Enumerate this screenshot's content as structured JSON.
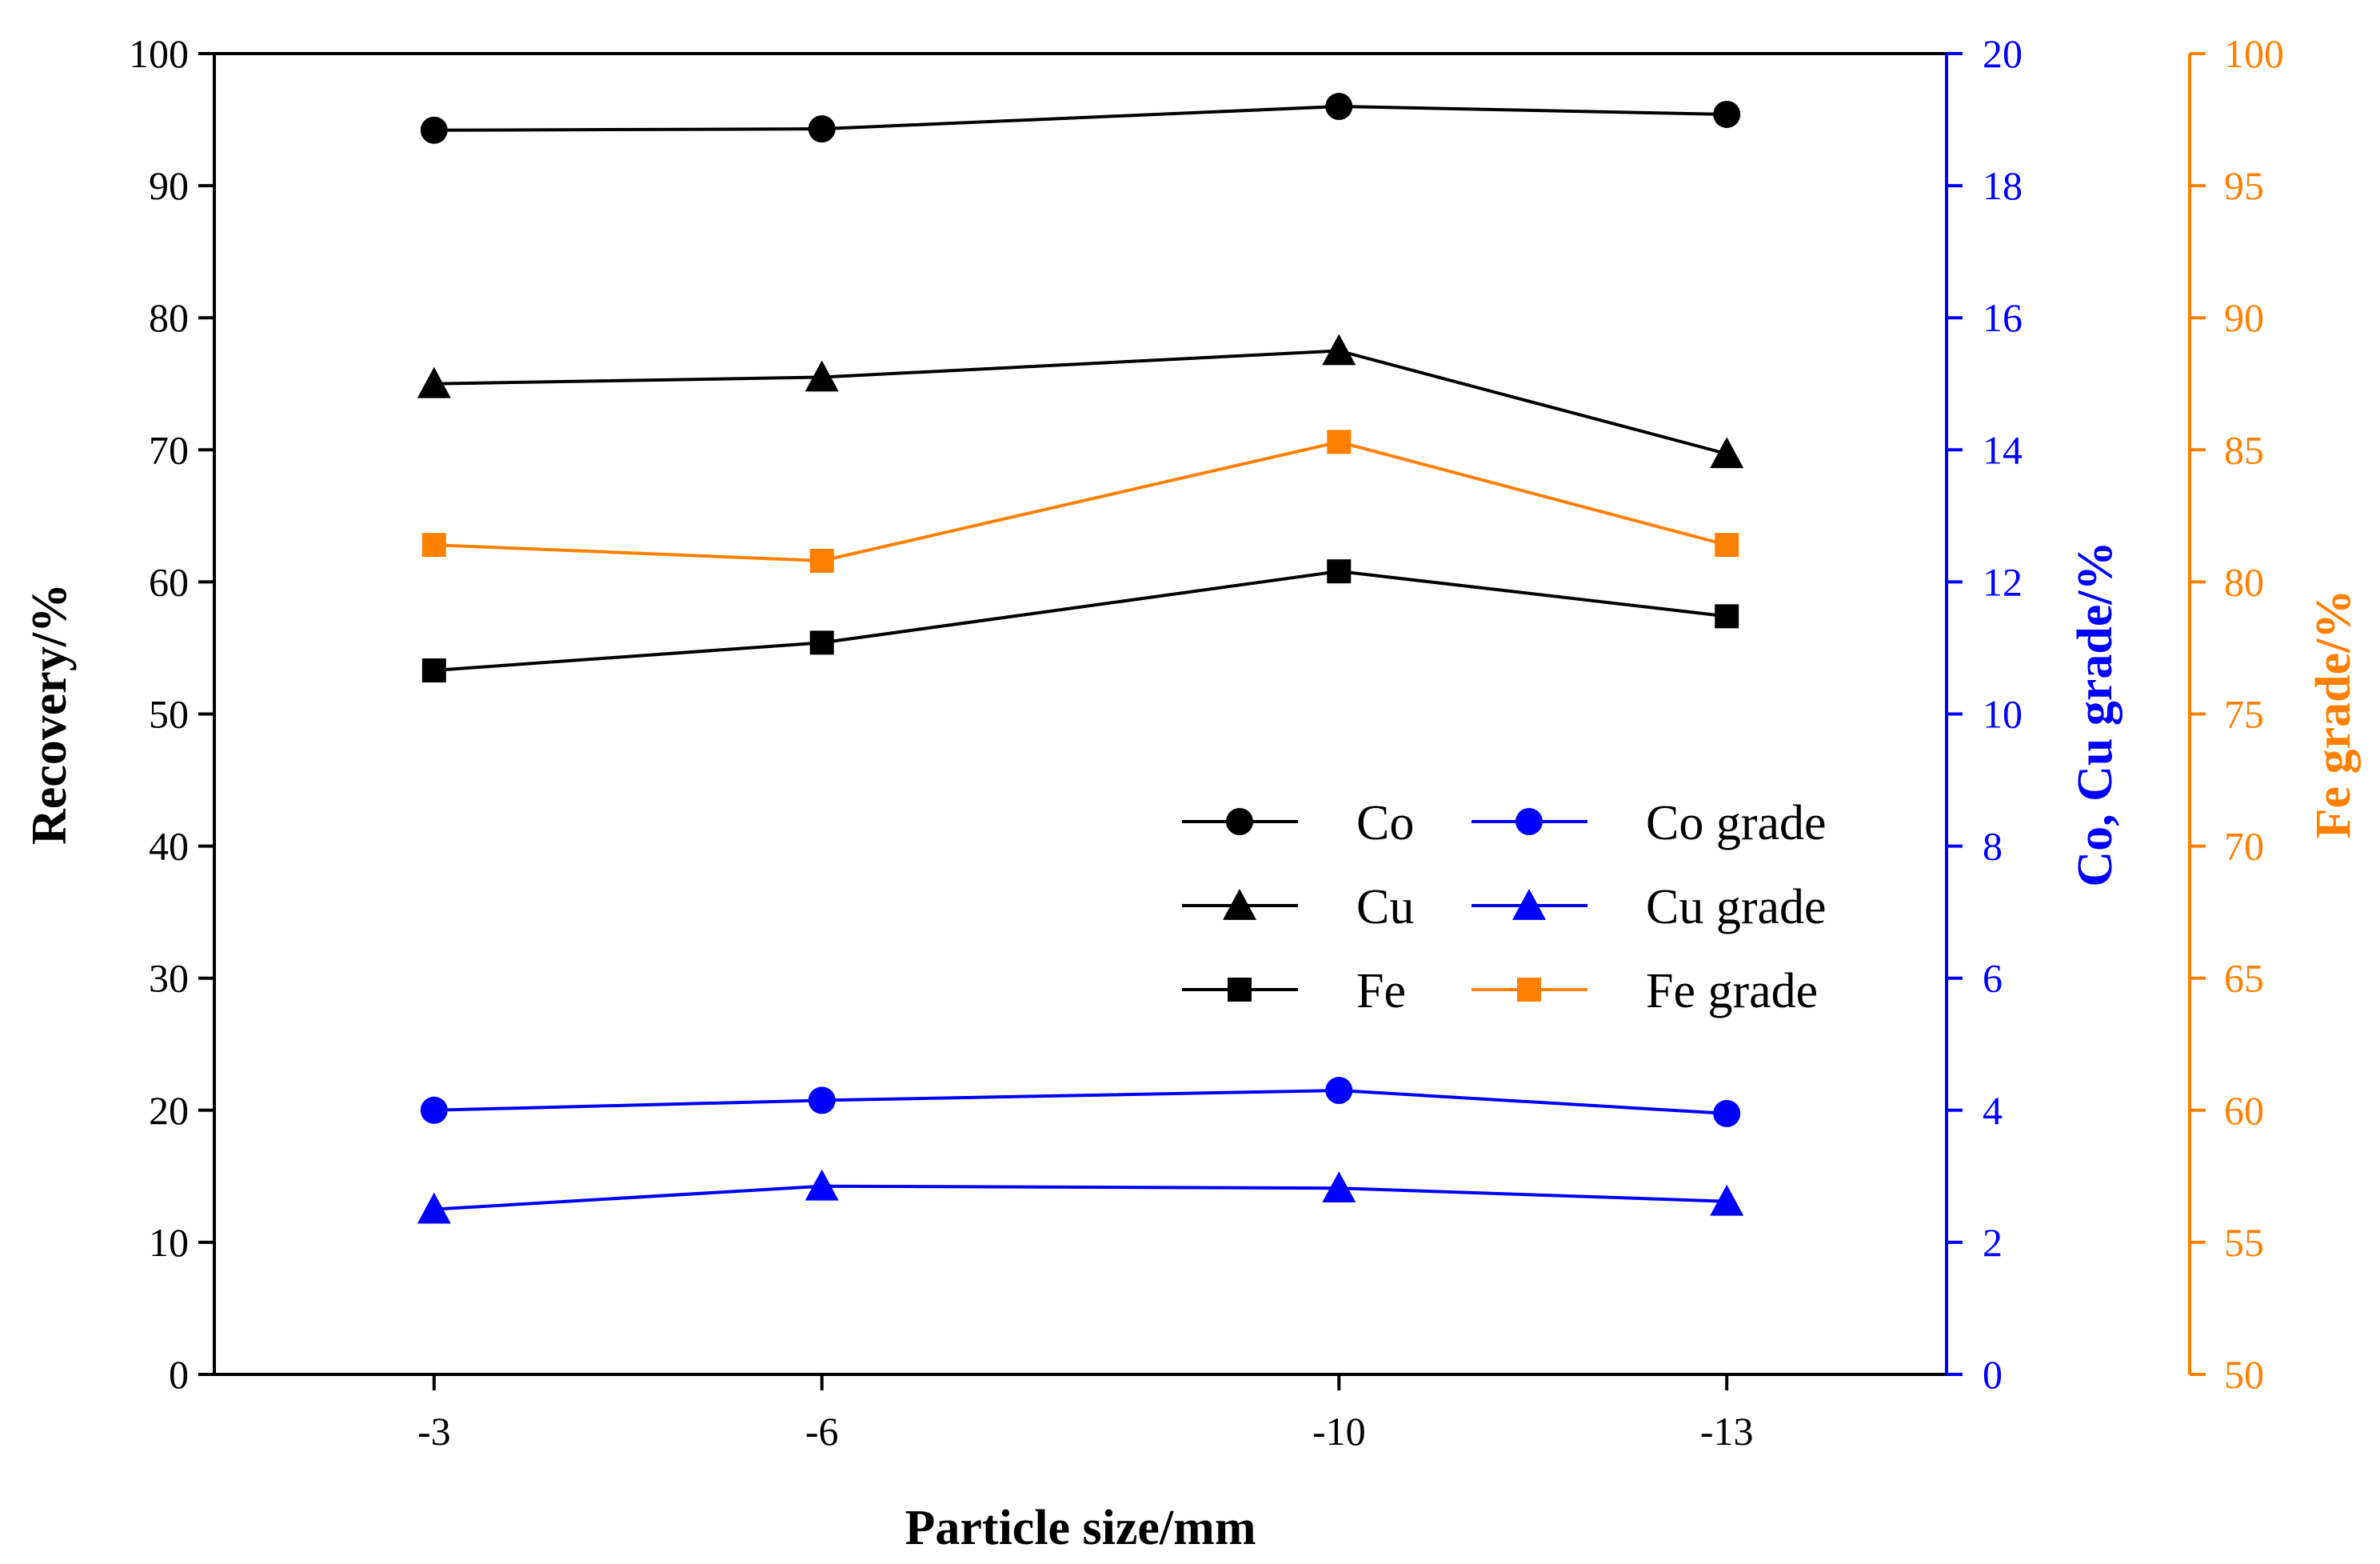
{
  "chart_data": {
    "type": "line",
    "title": "",
    "xlabel": "Particle size/mm",
    "categories": [
      "-3",
      "-6",
      "-10",
      "-13"
    ],
    "x": [
      3,
      6,
      10,
      13
    ],
    "xlim": [
      1.3,
      14.7
    ],
    "axes": {
      "left": {
        "label": "Recovery/%",
        "min": 0,
        "max": 100,
        "step": 10,
        "color": "#000000"
      },
      "right1": {
        "label": "Co, Cu grade/%",
        "min": 0,
        "max": 20,
        "step": 2,
        "color": "#0000ff"
      },
      "right2": {
        "label": "Fe grade/%",
        "min": 50,
        "max": 100,
        "step": 5,
        "color": "#ff8000"
      }
    },
    "series": [
      {
        "name": "Co",
        "axis": "left",
        "color": "#000000",
        "marker": "circle",
        "values": [
          94.2,
          94.3,
          96.0,
          95.4
        ]
      },
      {
        "name": "Cu",
        "axis": "left",
        "color": "#000000",
        "marker": "triangle",
        "values": [
          75.0,
          75.5,
          77.5,
          69.7
        ]
      },
      {
        "name": "Fe",
        "axis": "left",
        "color": "#000000",
        "marker": "square",
        "values": [
          53.3,
          55.4,
          60.8,
          57.4
        ]
      },
      {
        "name": "Co grade",
        "axis": "right1",
        "color": "#0000ff",
        "marker": "circle",
        "values": [
          4.0,
          4.15,
          4.3,
          3.95
        ]
      },
      {
        "name": "Cu grade",
        "axis": "right1",
        "color": "#0000ff",
        "marker": "triangle",
        "values": [
          2.5,
          2.85,
          2.82,
          2.62
        ]
      },
      {
        "name": "Fe grade",
        "axis": "right2",
        "color": "#ff8000",
        "marker": "square",
        "values": [
          81.4,
          80.8,
          85.3,
          81.4
        ]
      }
    ],
    "legend": {
      "position": "center-right",
      "columns": [
        [
          "Co",
          "Cu",
          "Fe"
        ],
        [
          "Co grade",
          "Cu grade",
          "Fe grade"
        ]
      ]
    },
    "grid": false
  }
}
